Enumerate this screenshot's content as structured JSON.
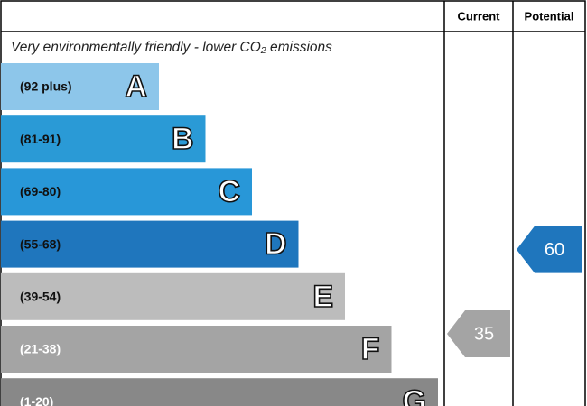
{
  "header": {
    "current": "Current",
    "potential": "Potential"
  },
  "subtitle": "Very environmentally friendly - lower CO₂ emissions",
  "bands": [
    {
      "range": "(92 plus)",
      "letter": "A",
      "color": "#8dc6ea"
    },
    {
      "range": "(81-91)",
      "letter": "B",
      "color": "#2a9ad6"
    },
    {
      "range": "(69-80)",
      "letter": "C",
      "color": "#2897d8"
    },
    {
      "range": "(55-68)",
      "letter": "D",
      "color": "#1f76bd"
    },
    {
      "range": "(39-54)",
      "letter": "E",
      "color": "#bcbcbc"
    },
    {
      "range": "(21-38)",
      "letter": "F",
      "color": "#a4a4a4"
    },
    {
      "range": "(1-20)",
      "letter": "G",
      "color": "#888888"
    }
  ],
  "current": {
    "value": 35,
    "color": "#a4a4a4"
  },
  "potential": {
    "value": 60,
    "color": "#1f76bd"
  }
}
